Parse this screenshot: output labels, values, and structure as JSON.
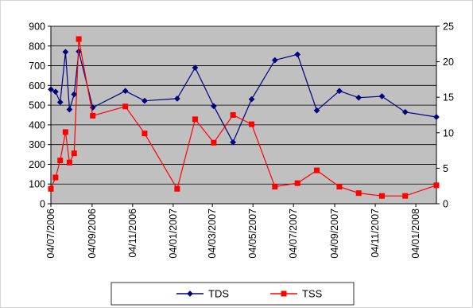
{
  "chart_data": {
    "type": "line",
    "title": "",
    "xlabel": "",
    "ylabel": "",
    "y2label": "",
    "x_tick_labels": [
      "04/07/2006",
      "04/09/2006",
      "04/11/2006",
      "04/01/2007",
      "04/03/2007",
      "04/05/2007",
      "04/07/2007",
      "04/09/2007",
      "04/11/2007",
      "04/01/2008"
    ],
    "x_range": [
      "2006-07-04",
      "2008-02-04"
    ],
    "ylim": [
      0,
      900
    ],
    "y_ticks": [
      0,
      100,
      200,
      300,
      400,
      500,
      600,
      700,
      800,
      900
    ],
    "y2lim": [
      0,
      25
    ],
    "y2_ticks": [
      0,
      5,
      10,
      15,
      20,
      25
    ],
    "grid": "horizontal",
    "legend_position": "bottom",
    "colors": {
      "plot_background": "#c0c0c0",
      "gridline": "#000000",
      "frame": "#808080"
    },
    "series": [
      {
        "name": "TDS",
        "axis": "left",
        "color": "#000080",
        "marker": "diamond",
        "points": [
          [
            "2006-07-04",
            580
          ],
          [
            "2006-07-11",
            568
          ],
          [
            "2006-07-18",
            515
          ],
          [
            "2006-07-26",
            770
          ],
          [
            "2006-08-01",
            478
          ],
          [
            "2006-08-08",
            555
          ],
          [
            "2006-08-15",
            772
          ],
          [
            "2006-09-05",
            488
          ],
          [
            "2006-10-24",
            572
          ],
          [
            "2006-11-22",
            522
          ],
          [
            "2007-01-10",
            533
          ],
          [
            "2007-02-06",
            690
          ],
          [
            "2007-03-06",
            495
          ],
          [
            "2007-04-04",
            312
          ],
          [
            "2007-05-02",
            530
          ],
          [
            "2007-06-06",
            728
          ],
          [
            "2007-07-10",
            757
          ],
          [
            "2007-08-08",
            473
          ],
          [
            "2007-09-11",
            572
          ],
          [
            "2007-10-10",
            538
          ],
          [
            "2007-11-14",
            545
          ],
          [
            "2007-12-19",
            465
          ],
          [
            "2008-02-04",
            440
          ]
        ]
      },
      {
        "name": "TSS",
        "axis": "right",
        "color": "#ff0000",
        "marker": "square",
        "points": [
          [
            "2006-07-04",
            2.1
          ],
          [
            "2006-07-11",
            3.7
          ],
          [
            "2006-07-18",
            6.1
          ],
          [
            "2006-07-26",
            10.1
          ],
          [
            "2006-08-01",
            5.8
          ],
          [
            "2006-08-08",
            7.1
          ],
          [
            "2006-08-15",
            23.2
          ],
          [
            "2006-09-05",
            12.4
          ],
          [
            "2006-10-24",
            13.7
          ],
          [
            "2006-11-22",
            9.9
          ],
          [
            "2007-01-10",
            2.1
          ],
          [
            "2007-02-06",
            11.9
          ],
          [
            "2007-03-06",
            8.6
          ],
          [
            "2007-04-04",
            12.5
          ],
          [
            "2007-05-02",
            11.2
          ],
          [
            "2007-06-06",
            2.4
          ],
          [
            "2007-07-10",
            2.9
          ],
          [
            "2007-08-08",
            4.7
          ],
          [
            "2007-09-11",
            2.4
          ],
          [
            "2007-10-10",
            1.5
          ],
          [
            "2007-11-14",
            1.1
          ],
          [
            "2007-12-19",
            1.1
          ],
          [
            "2008-02-04",
            2.6
          ]
        ]
      }
    ]
  }
}
